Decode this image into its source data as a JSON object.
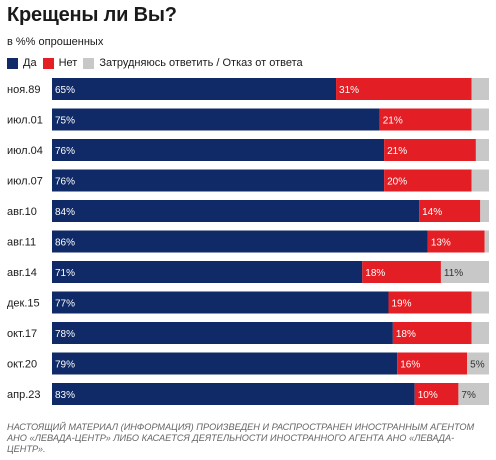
{
  "header": {
    "title": "Крещены ли Вы?",
    "subtitle": "в %% опрошенных"
  },
  "legend": [
    {
      "label": "Да",
      "color": "#0f2a66"
    },
    {
      "label": "Нет",
      "color": "#e31e24"
    },
    {
      "label": "Затрудняюсь ответить / Отказ от ответа",
      "color": "#c8c8c8"
    }
  ],
  "chart_data": {
    "type": "bar",
    "stacked": true,
    "orientation": "horizontal",
    "categories": [
      "ноя.89",
      "июл.01",
      "июл.04",
      "июл.07",
      "авг.10",
      "авг.11",
      "авг.14",
      "дек.15",
      "окт.17",
      "окт.20",
      "апр.23"
    ],
    "series": [
      {
        "name": "Да",
        "color": "#0f2a66",
        "values": [
          65,
          75,
          76,
          76,
          84,
          86,
          71,
          77,
          78,
          79,
          83
        ],
        "labels": [
          "65%",
          "75%",
          "76%",
          "76%",
          "84%",
          "86%",
          "71%",
          "77%",
          "78%",
          "79%",
          "83%"
        ]
      },
      {
        "name": "Нет",
        "color": "#e31e24",
        "values": [
          31,
          21,
          21,
          20,
          14,
          13,
          18,
          19,
          18,
          16,
          10
        ],
        "labels": [
          "31%",
          "21%",
          "21%",
          "20%",
          "14%",
          "13%",
          "18%",
          "19%",
          "18%",
          "16%",
          "10%"
        ]
      },
      {
        "name": "Затрудняюсь ответить / Отказ от ответа",
        "color": "#c8c8c8",
        "values": [
          4,
          4,
          3,
          4,
          2,
          1,
          11,
          4,
          4,
          5,
          7
        ],
        "labels": [
          "",
          "",
          "",
          "",
          "",
          "",
          "11%",
          "",
          "",
          "5%",
          "7%"
        ]
      }
    ],
    "xlim": [
      0,
      100
    ]
  },
  "footnote": "НАСТОЯЩИЙ МАТЕРИАЛ (ИНФОРМАЦИЯ) ПРОИЗВЕДЕН И РАСПРОСТРАНЕН ИНОСТРАННЫМ АГЕНТОМ АНО «ЛЕВАДА-ЦЕНТР» ЛИБО КАСАЕТСЯ ДЕЯТЕЛЬНОСТИ ИНОСТРАННОГО АГЕНТА АНО «ЛЕВАДА-ЦЕНТР»."
}
